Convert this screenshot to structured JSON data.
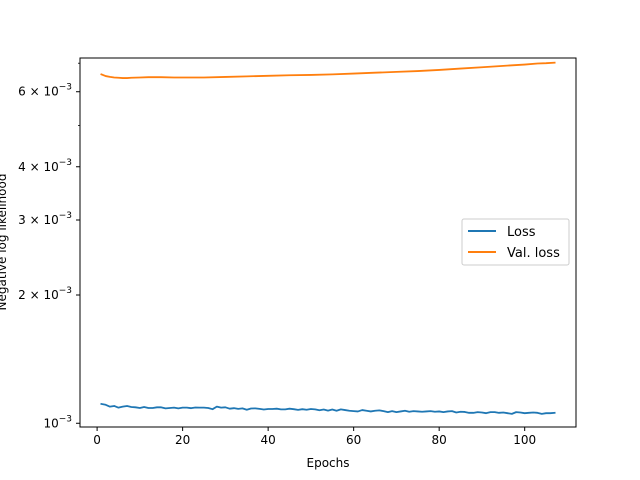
{
  "chart_data": {
    "type": "line",
    "title": "",
    "xlabel": "Epochs",
    "ylabel": "Negative log likelihood",
    "xlim": [
      -4,
      112
    ],
    "ylim": [
      0.00098,
      0.0072
    ],
    "yscale": "log",
    "grid": false,
    "legend_position": "center-right",
    "x_ticks": [
      0,
      20,
      40,
      60,
      80,
      100
    ],
    "x_tick_labels": [
      "0",
      "20",
      "40",
      "60",
      "80",
      "100"
    ],
    "y_ticks": [
      0.001,
      0.002,
      0.003,
      0.004,
      0.006
    ],
    "y_tick_labels": [
      {
        "mantissa": "",
        "base": "10",
        "exp": "−3"
      },
      {
        "mantissa": "2 × ",
        "base": "10",
        "exp": "−3"
      },
      {
        "mantissa": "3 × ",
        "base": "10",
        "exp": "−3"
      },
      {
        "mantissa": "4 × ",
        "base": "10",
        "exp": "−3"
      },
      {
        "mantissa": "6 × ",
        "base": "10",
        "exp": "−3"
      }
    ],
    "series": [
      {
        "name": "Loss",
        "color": "#1f77b4",
        "x": [
          1,
          2,
          3,
          4,
          5,
          6,
          7,
          8,
          9,
          10,
          11,
          12,
          13,
          14,
          15,
          16,
          17,
          18,
          19,
          20,
          21,
          22,
          23,
          24,
          25,
          26,
          27,
          28,
          29,
          30,
          31,
          32,
          33,
          34,
          35,
          36,
          37,
          38,
          39,
          40,
          41,
          42,
          43,
          44,
          45,
          46,
          47,
          48,
          49,
          50,
          51,
          52,
          53,
          54,
          55,
          56,
          57,
          58,
          59,
          60,
          61,
          62,
          63,
          64,
          65,
          66,
          67,
          68,
          69,
          70,
          71,
          72,
          73,
          74,
          75,
          76,
          77,
          78,
          79,
          80,
          81,
          82,
          83,
          84,
          85,
          86,
          87,
          88,
          89,
          90,
          91,
          92,
          93,
          94,
          95,
          96,
          97,
          98,
          99,
          100,
          101,
          102,
          103,
          104,
          105,
          106,
          107
        ],
        "values": [
          0.00111,
          0.001105,
          0.001094,
          0.001098,
          0.001088,
          0.001094,
          0.001098,
          0.001092,
          0.00109,
          0.001086,
          0.001092,
          0.001086,
          0.001086,
          0.00109,
          0.00109,
          0.001084,
          0.001086,
          0.001088,
          0.001084,
          0.001088,
          0.001088,
          0.001085,
          0.001089,
          0.001088,
          0.001088,
          0.001086,
          0.001079,
          0.001094,
          0.001088,
          0.00109,
          0.001082,
          0.001085,
          0.001081,
          0.001084,
          0.001076,
          0.001083,
          0.001084,
          0.001081,
          0.001077,
          0.00108,
          0.00108,
          0.001082,
          0.001078,
          0.001078,
          0.001082,
          0.001079,
          0.001075,
          0.001079,
          0.001076,
          0.00108,
          0.001078,
          0.001073,
          0.001077,
          0.001071,
          0.001077,
          0.00107,
          0.001078,
          0.001074,
          0.00107,
          0.001068,
          0.001066,
          0.001074,
          0.00107,
          0.001066,
          0.00107,
          0.001072,
          0.001068,
          0.001062,
          0.001068,
          0.001062,
          0.001066,
          0.00107,
          0.001064,
          0.001068,
          0.001066,
          0.001064,
          0.001066,
          0.001068,
          0.001064,
          0.001066,
          0.001062,
          0.001066,
          0.001068,
          0.00106,
          0.001064,
          0.001063,
          0.001058,
          0.001058,
          0.001062,
          0.00106,
          0.001056,
          0.001062,
          0.001062,
          0.001058,
          0.00106,
          0.001056,
          0.001052,
          0.001062,
          0.00106,
          0.001056,
          0.001058,
          0.00106,
          0.001058,
          0.001052,
          0.001056,
          0.001056,
          0.001058
        ]
      },
      {
        "name": "Val. loss",
        "color": "#ff7f0e",
        "x": [
          1,
          2,
          3,
          4,
          5,
          6,
          7,
          8,
          10,
          12,
          15,
          18,
          20,
          23,
          25,
          30,
          35,
          40,
          45,
          50,
          55,
          60,
          65,
          70,
          75,
          80,
          85,
          90,
          95,
          100,
          103,
          105,
          107
        ],
        "values": [
          0.00659,
          0.00653,
          0.0065,
          0.00648,
          0.00647,
          0.00646,
          0.00646,
          0.00647,
          0.00648,
          0.00649,
          0.00649,
          0.00648,
          0.00648,
          0.00648,
          0.00648,
          0.0065,
          0.00652,
          0.00654,
          0.00656,
          0.00657,
          0.00659,
          0.00662,
          0.00665,
          0.00668,
          0.00671,
          0.00675,
          0.0068,
          0.00685,
          0.0069,
          0.00695,
          0.00699,
          0.007,
          0.00702
        ]
      }
    ]
  }
}
